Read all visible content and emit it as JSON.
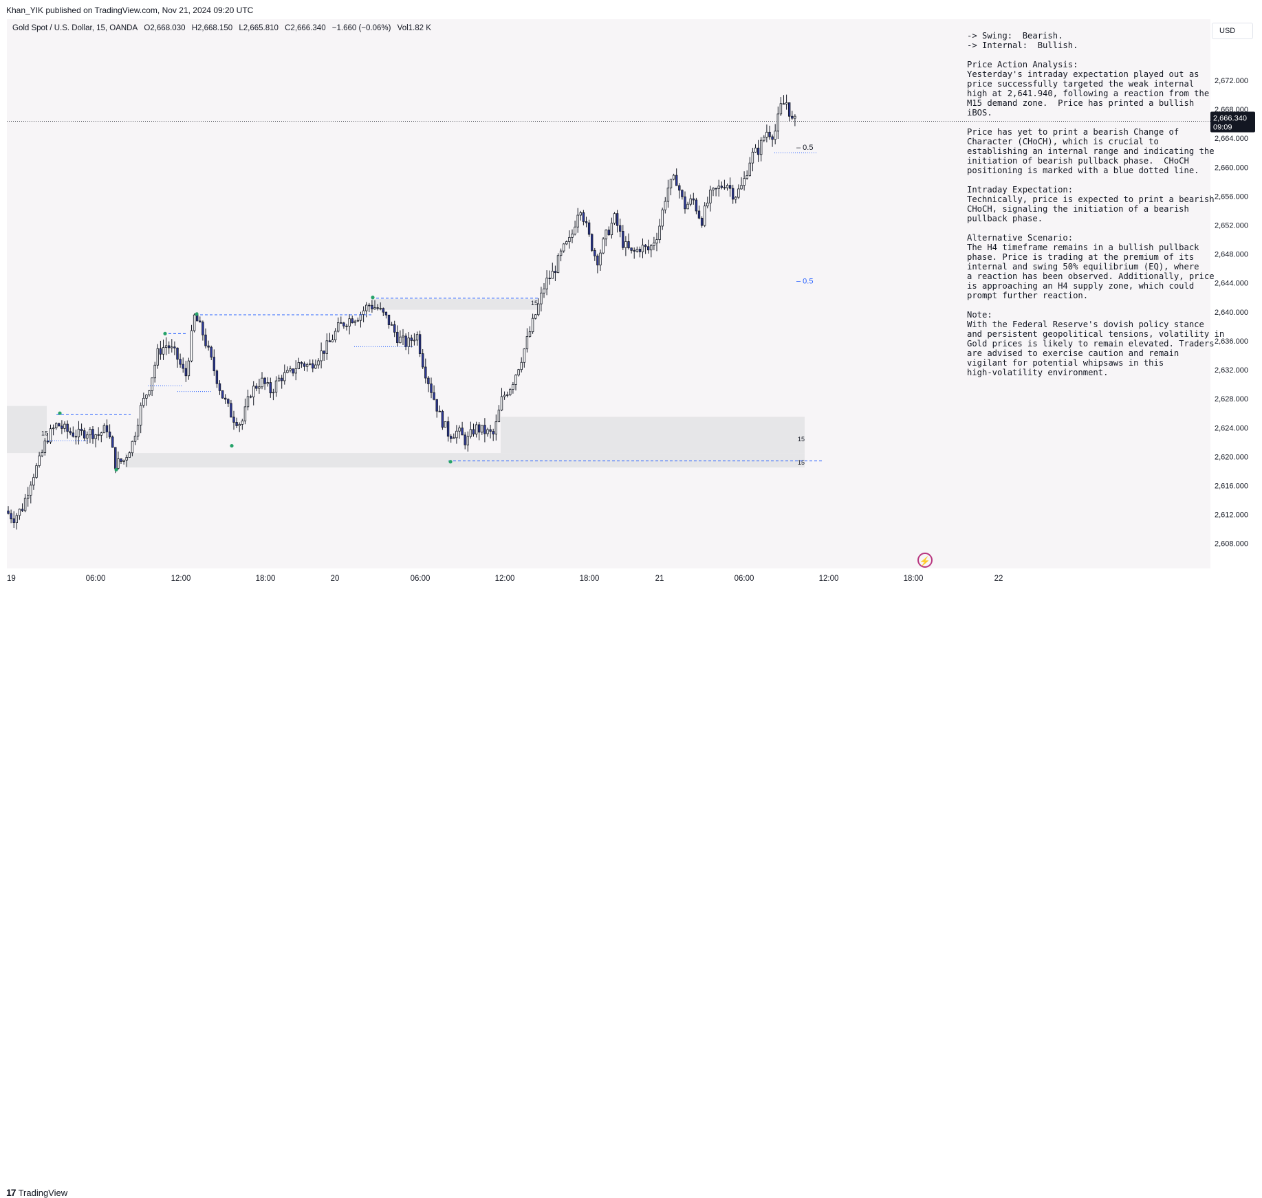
{
  "header": {
    "publisher": "Khan_YIK published on TradingView.com, Nov 21, 2024 09:20 UTC"
  },
  "legend": {
    "symbol": "Gold Spot / U.S. Dollar, 15, OANDA",
    "open": "O2,668.030",
    "high": "H2,668.150",
    "low": "L2,665.810",
    "close": "C2,666.340",
    "change": "−1.660 (−0.06%)",
    "volume": "Vol1.82 K"
  },
  "currency_label": "USD",
  "notes": [
    "-> Swing:  Bearish.",
    "-> Internal:  Bullish.",
    "",
    "Price Action Analysis:",
    "Yesterday's intraday expectation played out as",
    "price successfully targeted the weak internal",
    "high at 2,641.940, following a reaction from the",
    "M15 demand zone.  Price has printed a bullish",
    "iBOS.",
    "",
    "Price has yet to print a bearish Change of",
    "Character (CHoCH), which is crucial to",
    "establishing an internal range and indicating the",
    "initiation of bearish pullback phase.  CHoCH",
    "positioning is marked with a blue dotted line.",
    "",
    "Intraday Expectation:",
    "Technically, price is expected to print a bearish",
    "CHoCH, signaling the initiation of a bearish",
    "pullback phase.",
    "",
    "Alternative Scenario:",
    "The H4 timeframe remains in a bullish pullback",
    "phase. Price is trading at the premium of its",
    "internal and swing 50% equilibrium (EQ), where",
    "a reaction has been observed. Additionally, price",
    "is approaching an H4 supply zone, which could",
    "prompt further reaction.",
    "",
    "Note:",
    "With the Federal Reserve's dovish policy stance",
    "and persistent geopolitical tensions, volatility in",
    "Gold prices is likely to remain elevated. Traders",
    "are advised to exercise caution and remain",
    "vigilant for potential whipsaws in this",
    "high-volatility environment."
  ],
  "footer": {
    "brand": "TradingView"
  },
  "colors": {
    "bull_fill": "#ffffff",
    "bear_fill": "#2e3a9c",
    "wick": "#131722",
    "zone": "#e6e6e8",
    "level_line": "#2962ff",
    "pivot": "#26a269",
    "price_tag": "#131722"
  },
  "icons": {
    "bolt": "lightning-bolt-icon"
  },
  "chart_data": {
    "type": "candlestick",
    "ylim": [
      2605.5,
      2679.5
    ],
    "xlim": [
      0,
      1547
    ],
    "y_ticks": [
      "2,608.000",
      "2,612.000",
      "2,616.000",
      "2,620.000",
      "2,624.000",
      "2,628.000",
      "2,632.000",
      "2,636.000",
      "2,640.000",
      "2,644.000",
      "2,648.000",
      "2,652.000",
      "2,656.000",
      "2,660.000",
      "2,664.000",
      "2,668.000",
      "2,672.000"
    ],
    "x_ticks": [
      {
        "label": "19",
        "x": 0
      },
      {
        "label": "06:00",
        "x": 129
      },
      {
        "label": "12:00",
        "x": 253
      },
      {
        "label": "18:00",
        "x": 376
      },
      {
        "label": "20",
        "x": 477
      },
      {
        "label": "06:00",
        "x": 601
      },
      {
        "label": "12:00",
        "x": 724
      },
      {
        "label": "18:00",
        "x": 847
      },
      {
        "label": "21",
        "x": 949
      },
      {
        "label": "06:00",
        "x": 1072
      },
      {
        "label": "12:00",
        "x": 1195
      },
      {
        "label": "18:00",
        "x": 1318
      },
      {
        "label": "22",
        "x": 1442
      }
    ],
    "last_price": {
      "value": 2666.34,
      "label": "2,666.340",
      "countdown": "09:09"
    },
    "anchors": [
      [
        0,
        2612.5
      ],
      [
        12,
        2611.5
      ],
      [
        25,
        2613.0
      ],
      [
        38,
        2617.0
      ],
      [
        50,
        2619.5
      ],
      [
        60,
        2622.5
      ],
      [
        75,
        2624.5
      ],
      [
        90,
        2623.5
      ],
      [
        105,
        2623.0
      ],
      [
        120,
        2623.5
      ],
      [
        135,
        2623.0
      ],
      [
        148,
        2624.0
      ],
      [
        160,
        2619.0
      ],
      [
        172,
        2619.5
      ],
      [
        185,
        2622.0
      ],
      [
        196,
        2626.5
      ],
      [
        210,
        2630.0
      ],
      [
        222,
        2634.5
      ],
      [
        235,
        2635.5
      ],
      [
        248,
        2634.0
      ],
      [
        262,
        2631.0
      ],
      [
        275,
        2639.5
      ],
      [
        287,
        2637.0
      ],
      [
        300,
        2633.0
      ],
      [
        315,
        2628.5
      ],
      [
        330,
        2625.5
      ],
      [
        343,
        2624.5
      ],
      [
        357,
        2629.0
      ],
      [
        372,
        2630.5
      ],
      [
        386,
        2629.0
      ],
      [
        400,
        2631.0
      ],
      [
        414,
        2631.5
      ],
      [
        428,
        2633.0
      ],
      [
        442,
        2632.5
      ],
      [
        456,
        2634.0
      ],
      [
        470,
        2635.5
      ],
      [
        485,
        2638.0
      ],
      [
        500,
        2639.0
      ],
      [
        514,
        2639.5
      ],
      [
        528,
        2641.0
      ],
      [
        541,
        2640.5
      ],
      [
        555,
        2639.0
      ],
      [
        570,
        2636.5
      ],
      [
        584,
        2635.5
      ],
      [
        598,
        2637.0
      ],
      [
        608,
        2632.5
      ],
      [
        620,
        2629.0
      ],
      [
        632,
        2625.5
      ],
      [
        645,
        2623.0
      ],
      [
        658,
        2623.5
      ],
      [
        670,
        2622.0
      ],
      [
        683,
        2624.0
      ],
      [
        696,
        2623.5
      ],
      [
        710,
        2623.0
      ],
      [
        722,
        2628.0
      ],
      [
        736,
        2630.0
      ],
      [
        748,
        2633.0
      ],
      [
        760,
        2636.5
      ],
      [
        772,
        2640.0
      ],
      [
        785,
        2644.0
      ],
      [
        797,
        2645.5
      ],
      [
        810,
        2648.5
      ],
      [
        822,
        2650.0
      ],
      [
        835,
        2655.0
      ],
      [
        848,
        2650.5
      ],
      [
        860,
        2647.0
      ],
      [
        873,
        2650.5
      ],
      [
        886,
        2653.0
      ],
      [
        898,
        2649.5
      ],
      [
        911,
        2648.0
      ],
      [
        924,
        2649.0
      ],
      [
        936,
        2648.5
      ],
      [
        949,
        2651.0
      ],
      [
        962,
        2657.0
      ],
      [
        975,
        2658.5
      ],
      [
        987,
        2654.5
      ],
      [
        1000,
        2655.5
      ],
      [
        1012,
        2652.5
      ],
      [
        1024,
        2656.0
      ],
      [
        1036,
        2657.0
      ],
      [
        1048,
        2658.0
      ],
      [
        1060,
        2656.0
      ],
      [
        1072,
        2657.5
      ],
      [
        1084,
        2661.5
      ],
      [
        1096,
        2662.5
      ],
      [
        1106,
        2665.0
      ],
      [
        1118,
        2664.5
      ],
      [
        1128,
        2668.5
      ],
      [
        1136,
        2669.0
      ],
      [
        1144,
        2666.3
      ]
    ],
    "zones": [
      {
        "x0": 0,
        "x1": 58,
        "y0": 2620.5,
        "y1": 2627.0
      },
      {
        "x0": 172,
        "x1": 1160,
        "y0": 2618.5,
        "y1": 2620.5
      },
      {
        "x0": 718,
        "x1": 1160,
        "y0": 2620.5,
        "y1": 2625.5
      },
      {
        "x0": 530,
        "x1": 772,
        "y0": 2640.3,
        "y1": 2641.8
      }
    ],
    "zone_labels": [
      {
        "text": "15",
        "x": 50,
        "y": 2623.2
      },
      {
        "text": "15",
        "x": 1150,
        "y": 2622.4
      },
      {
        "text": "15",
        "x": 1150,
        "y": 2619.2
      },
      {
        "text": "15",
        "x": 762,
        "y": 2641.2
      }
    ],
    "dashed_levels": [
      {
        "x0": 72,
        "x1": 180,
        "y": 2625.8
      },
      {
        "x0": 228,
        "x1": 262,
        "y": 2637.0
      },
      {
        "x0": 274,
        "x1": 530,
        "y": 2639.6
      },
      {
        "x0": 530,
        "x1": 772,
        "y": 2641.9
      },
      {
        "x0": 642,
        "x1": 1185,
        "y": 2619.4
      }
    ],
    "dotted_levels": [
      {
        "x0": 60,
        "x1": 118,
        "y": 2622.2
      },
      {
        "x0": 205,
        "x1": 255,
        "y": 2629.8
      },
      {
        "x0": 248,
        "x1": 298,
        "y": 2629.0
      },
      {
        "x0": 505,
        "x1": 590,
        "y": 2635.2
      },
      {
        "x0": 1116,
        "x1": 1178,
        "y": 2662.0
      }
    ],
    "pivots": [
      {
        "x": 75,
        "y": 2626.0
      },
      {
        "x": 157,
        "y": 2618.2
      },
      {
        "x": 228,
        "y": 2637.0
      },
      {
        "x": 274,
        "y": 2639.7
      },
      {
        "x": 325,
        "y": 2621.5
      },
      {
        "x": 530,
        "y": 2642.0
      },
      {
        "x": 643,
        "y": 2619.3
      }
    ],
    "eq_labels": [
      {
        "text": "– 0.5",
        "x": 1148,
        "y": 2662.8,
        "color": "#131722"
      },
      {
        "text": "– 0.5",
        "x": 1148,
        "y": 2644.3,
        "color": "#2962ff"
      }
    ]
  }
}
